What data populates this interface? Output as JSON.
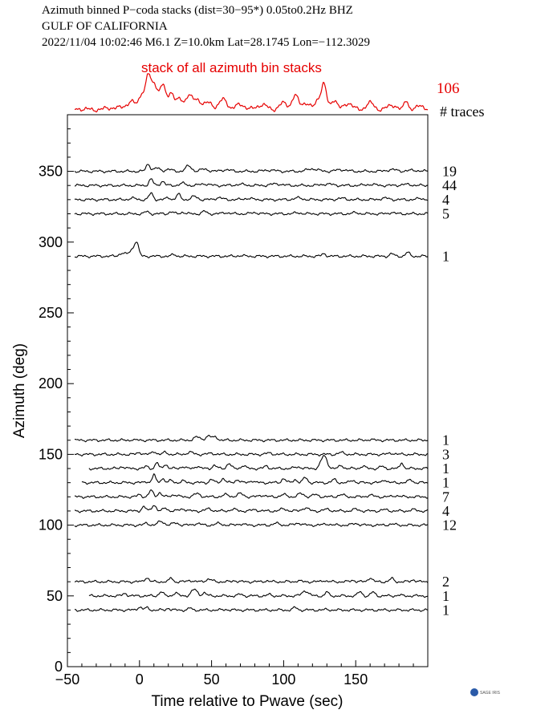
{
  "header": {
    "line1": "Azimuth binned P−coda stacks (dist=30−95*)  0.05to0.2Hz  BHZ",
    "line2": "GULF OF CALIFORNIA",
    "line3": "2022/11/04  10:02:46  M6.1  Z=10.0km Lat=28.1745 Lon=−112.3029"
  },
  "logo": {
    "text": "SAGE IRIS"
  },
  "chart_data": {
    "type": "line",
    "title": "",
    "xlabel": "Time relative to Pwave (sec)",
    "ylabel": "Azimuth (deg)",
    "xlim": [
      -50,
      200
    ],
    "ylim": [
      0,
      390
    ],
    "x_ticks": [
      -50,
      0,
      50,
      100,
      150
    ],
    "x_tick_labels": [
      "−50",
      "0",
      "50",
      "100",
      "150"
    ],
    "y_ticks": [
      0,
      50,
      100,
      150,
      200,
      250,
      300,
      350
    ],
    "y_tick_labels": [
      "0",
      "50",
      "100",
      "150",
      "200",
      "250",
      "300",
      "350"
    ],
    "stack": {
      "title": "stack of all azimuth bin stacks",
      "count": "106",
      "count_header": "# traces",
      "color": "#e60000",
      "x_start": -45,
      "pulses": [
        [
          -40,
          0.3,
          6
        ],
        [
          -20,
          0.6,
          6
        ],
        [
          -10,
          0.8,
          5
        ],
        [
          -5,
          2,
          4
        ],
        [
          2,
          5,
          3
        ],
        [
          6,
          9,
          2
        ],
        [
          10,
          8,
          3
        ],
        [
          16,
          7,
          3
        ],
        [
          22,
          5,
          3
        ],
        [
          28,
          3,
          3
        ],
        [
          34,
          4,
          3
        ],
        [
          40,
          3,
          4
        ],
        [
          48,
          2,
          4
        ],
        [
          58,
          3,
          4
        ],
        [
          70,
          1.5,
          5
        ],
        [
          85,
          1.5,
          5
        ],
        [
          100,
          2,
          4
        ],
        [
          108,
          4,
          3
        ],
        [
          115,
          2,
          4
        ],
        [
          124,
          3,
          3
        ],
        [
          128,
          7,
          2.5
        ],
        [
          135,
          3,
          3
        ],
        [
          145,
          2,
          4
        ],
        [
          160,
          2,
          4
        ],
        [
          175,
          1.5,
          4
        ],
        [
          185,
          3,
          2
        ],
        [
          195,
          1.5,
          3
        ]
      ]
    },
    "series": [
      {
        "azimuth": 350,
        "count": "19",
        "x_start": -45,
        "pulses": [
          [
            6,
            3.5,
            2
          ],
          [
            12,
            1.5,
            3
          ],
          [
            20,
            1,
            3
          ],
          [
            34,
            2.5,
            3
          ],
          [
            45,
            1,
            4
          ],
          [
            60,
            0.8,
            4
          ],
          [
            90,
            0.6,
            5
          ],
          [
            120,
            1.2,
            5
          ],
          [
            140,
            0.8,
            5
          ],
          [
            175,
            0.8,
            5
          ],
          [
            190,
            0.5,
            5
          ]
        ]
      },
      {
        "azimuth": 340,
        "count": "44",
        "x_start": -45,
        "pulses": [
          [
            8,
            3,
            2
          ],
          [
            16,
            2,
            2
          ],
          [
            30,
            1,
            3
          ],
          [
            45,
            0.8,
            4
          ],
          [
            70,
            0.5,
            5
          ],
          [
            95,
            0.8,
            5
          ],
          [
            130,
            0.7,
            5
          ],
          [
            160,
            0.5,
            5
          ],
          [
            185,
            0.5,
            5
          ]
        ]
      },
      {
        "azimuth": 330,
        "count": "4",
        "x_start": -45,
        "pulses": [
          [
            -5,
            0.7,
            3
          ],
          [
            8,
            3,
            2
          ],
          [
            20,
            1,
            2
          ],
          [
            27,
            2.5,
            2
          ],
          [
            38,
            1.5,
            3
          ],
          [
            55,
            1,
            3
          ],
          [
            75,
            0.6,
            4
          ],
          [
            110,
            0.8,
            4
          ],
          [
            140,
            0.6,
            4
          ],
          [
            170,
            0.7,
            4
          ],
          [
            195,
            0.6,
            3
          ]
        ]
      },
      {
        "azimuth": 320,
        "count": "5",
        "x_start": -45,
        "pulses": [
          [
            5,
            1,
            2
          ],
          [
            22,
            1,
            2
          ],
          [
            30,
            0.8,
            2
          ],
          [
            45,
            1.2,
            2
          ],
          [
            60,
            0.6,
            3
          ],
          [
            80,
            0.6,
            3
          ],
          [
            110,
            0.5,
            3
          ],
          [
            150,
            0.5,
            3
          ],
          [
            175,
            0.8,
            2
          ]
        ]
      },
      {
        "azimuth": 290,
        "count": "1",
        "x_start": -45,
        "pulses": [
          [
            -12,
            1.5,
            3
          ],
          [
            -5,
            3,
            3
          ],
          [
            -2,
            6,
            2
          ],
          [
            24,
            0.8,
            2
          ],
          [
            70,
            0.3,
            3
          ],
          [
            128,
            1.2,
            2
          ],
          [
            175,
            1.2,
            2
          ],
          [
            186,
            1.8,
            2
          ]
        ]
      },
      {
        "azimuth": 160,
        "count": "1",
        "x_start": -45,
        "pulses": [
          [
            -5,
            0.4,
            1
          ],
          [
            40,
            1.5,
            3
          ],
          [
            48,
            2,
            3
          ],
          [
            53,
            1.5,
            2
          ],
          [
            160,
            0.4,
            2
          ]
        ]
      },
      {
        "azimuth": 150,
        "count": "3",
        "x_start": -45,
        "pulses": [
          [
            0,
            1,
            2
          ],
          [
            10,
            1.5,
            2
          ],
          [
            18,
            1,
            2
          ],
          [
            35,
            1,
            3
          ],
          [
            50,
            0.5,
            3
          ],
          [
            90,
            0.6,
            3
          ],
          [
            140,
            0.8,
            3
          ],
          [
            175,
            0.6,
            3
          ]
        ]
      },
      {
        "azimuth": 140,
        "count": "1",
        "x_start": -35,
        "pulses": [
          [
            -12,
            1,
            2
          ],
          [
            5,
            1,
            2
          ],
          [
            12,
            3,
            1.5
          ],
          [
            18,
            2,
            2
          ],
          [
            30,
            1,
            2
          ],
          [
            40,
            1.2,
            2
          ],
          [
            52,
            1.5,
            2
          ],
          [
            62,
            2.5,
            2
          ],
          [
            72,
            1.5,
            2
          ],
          [
            88,
            1.2,
            2
          ],
          [
            110,
            0.8,
            3
          ],
          [
            128,
            6,
            3
          ],
          [
            140,
            1.5,
            2
          ],
          [
            155,
            1.2,
            2
          ],
          [
            168,
            1,
            2
          ],
          [
            182,
            3,
            1.5
          ]
        ]
      },
      {
        "azimuth": 130,
        "count": "1",
        "x_start": -40,
        "pulses": [
          [
            5,
            0.6,
            2
          ],
          [
            10,
            4,
            1.5
          ],
          [
            16,
            2,
            2
          ],
          [
            22,
            1,
            2
          ],
          [
            30,
            0.8,
            2
          ],
          [
            50,
            1.5,
            2
          ],
          [
            58,
            2,
            2
          ],
          [
            68,
            1.5,
            2
          ],
          [
            78,
            1,
            2
          ],
          [
            100,
            2,
            2
          ],
          [
            108,
            1.5,
            2
          ],
          [
            115,
            2.5,
            2
          ],
          [
            135,
            1.5,
            2
          ],
          [
            148,
            1.2,
            2
          ],
          [
            170,
            1.5,
            2
          ],
          [
            188,
            1.5,
            2
          ]
        ]
      },
      {
        "azimuth": 120,
        "count": "7",
        "x_start": -45,
        "pulses": [
          [
            0,
            1,
            2
          ],
          [
            8,
            3,
            2
          ],
          [
            14,
            2,
            2
          ],
          [
            24,
            1,
            3
          ],
          [
            40,
            1.5,
            3
          ],
          [
            60,
            1,
            3
          ],
          [
            70,
            1.5,
            3
          ],
          [
            85,
            0.8,
            3
          ],
          [
            100,
            1,
            3
          ],
          [
            112,
            1.5,
            3
          ],
          [
            122,
            1,
            3
          ],
          [
            140,
            1,
            3
          ],
          [
            160,
            0.8,
            3
          ],
          [
            178,
            0.6,
            3
          ]
        ]
      },
      {
        "azimuth": 110,
        "count": "4",
        "x_start": -45,
        "pulses": [
          [
            3,
            2,
            2
          ],
          [
            10,
            3,
            2
          ],
          [
            18,
            1.5,
            2
          ],
          [
            30,
            1,
            3
          ],
          [
            48,
            1,
            3
          ],
          [
            65,
            0.8,
            3
          ],
          [
            80,
            0.6,
            3
          ],
          [
            100,
            1,
            3
          ],
          [
            115,
            1.5,
            3
          ],
          [
            130,
            0.8,
            3
          ],
          [
            150,
            0.8,
            3
          ],
          [
            170,
            0.6,
            3
          ],
          [
            190,
            0.6,
            3
          ]
        ]
      },
      {
        "azimuth": 100,
        "count": "12",
        "x_start": -45,
        "pulses": [
          [
            5,
            1,
            2
          ],
          [
            15,
            1.8,
            3
          ],
          [
            25,
            1,
            3
          ],
          [
            40,
            0.8,
            3
          ],
          [
            55,
            0.8,
            3
          ],
          [
            70,
            0.6,
            3
          ],
          [
            95,
            0.8,
            3
          ],
          [
            110,
            1,
            3
          ],
          [
            130,
            0.6,
            3
          ],
          [
            150,
            0.8,
            3
          ],
          [
            175,
            0.5,
            3
          ]
        ]
      },
      {
        "azimuth": 60,
        "count": "2",
        "x_start": -45,
        "pulses": [
          [
            5,
            2,
            2
          ],
          [
            22,
            2,
            1.5
          ],
          [
            35,
            0.8,
            2
          ],
          [
            48,
            1.2,
            3
          ],
          [
            66,
            0.6,
            2
          ],
          [
            88,
            0.5,
            2
          ],
          [
            110,
            0.5,
            2
          ],
          [
            128,
            0.7,
            2
          ],
          [
            148,
            0.8,
            2
          ],
          [
            160,
            2,
            2
          ],
          [
            175,
            1.5,
            2
          ],
          [
            190,
            1,
            2
          ]
        ]
      },
      {
        "azimuth": 50,
        "count": "1",
        "x_start": -35,
        "pulses": [
          [
            -10,
            1.2,
            2
          ],
          [
            15,
            2,
            2
          ],
          [
            25,
            1.5,
            2
          ],
          [
            38,
            3,
            3
          ],
          [
            45,
            1.5,
            2
          ],
          [
            70,
            0.8,
            2
          ],
          [
            90,
            0.6,
            2
          ],
          [
            115,
            2.5,
            3
          ],
          [
            130,
            2,
            1.5
          ],
          [
            153,
            2,
            2
          ],
          [
            162,
            1.8,
            2
          ],
          [
            180,
            0.4,
            2
          ]
        ]
      },
      {
        "azimuth": 40,
        "count": "1",
        "x_start": -45,
        "pulses": [
          [
            0,
            1.5,
            2
          ],
          [
            5,
            1,
            2
          ],
          [
            20,
            1,
            1.5
          ],
          [
            35,
            1,
            1.5
          ],
          [
            60,
            0.3,
            2
          ],
          [
            108,
            1.2,
            2
          ],
          [
            130,
            0.3,
            2
          ]
        ]
      }
    ]
  }
}
